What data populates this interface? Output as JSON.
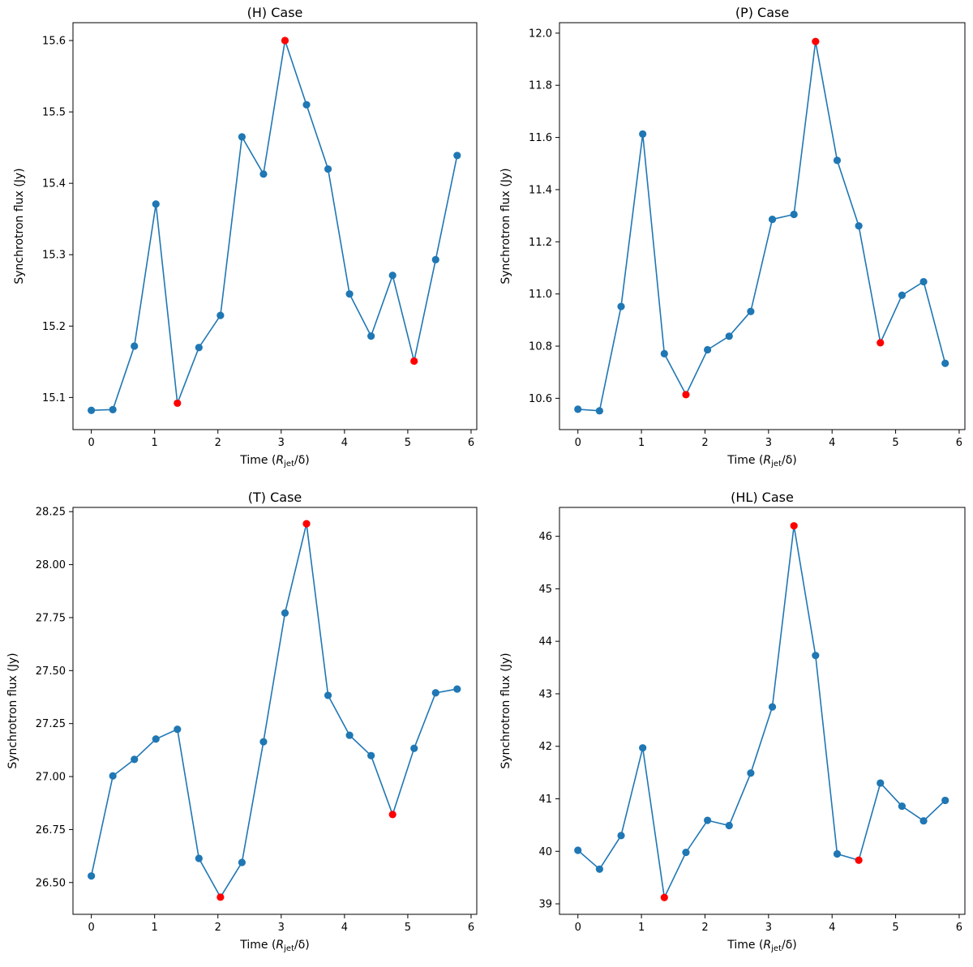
{
  "chart_data": [
    {
      "type": "line",
      "title": "(H) Case",
      "xlabel_main": "Time (",
      "xlabel_var": "R",
      "xlabel_sub": "jet",
      "xlabel_tail": "/δ)",
      "ylabel": "Synchrotron flux (Jy)",
      "xlim": [
        -0.29,
        6.09
      ],
      "ylim": [
        15.055,
        15.625
      ],
      "xticks": [
        0,
        1,
        2,
        3,
        4,
        5,
        6
      ],
      "yticks": [
        15.1,
        15.2,
        15.3,
        15.4,
        15.5,
        15.6
      ],
      "ytick_labels": [
        "15.1",
        "15.2",
        "15.3",
        "15.4",
        "15.5",
        "15.6"
      ],
      "x": [
        0,
        0.34,
        0.68,
        1.02,
        1.36,
        1.7,
        2.04,
        2.38,
        2.72,
        3.06,
        3.4,
        3.74,
        4.08,
        4.42,
        4.76,
        5.1,
        5.44,
        5.78
      ],
      "y": [
        15.082,
        15.083,
        15.172,
        15.371,
        15.092,
        15.17,
        15.215,
        15.465,
        15.413,
        15.6,
        15.51,
        15.42,
        15.245,
        15.186,
        15.271,
        15.151,
        15.293,
        15.439
      ],
      "highlight_indices": [
        4,
        9,
        15
      ],
      "line_color": "#1f77b4",
      "highlight_color": "#ff0000"
    },
    {
      "type": "line",
      "title": "(P) Case",
      "xlabel_main": "Time (",
      "xlabel_var": "R",
      "xlabel_sub": "jet",
      "xlabel_tail": "/δ)",
      "ylabel": "Synchrotron flux (Jy)",
      "xlim": [
        -0.29,
        6.09
      ],
      "ylim": [
        10.48,
        12.04
      ],
      "xticks": [
        0,
        1,
        2,
        3,
        4,
        5,
        6
      ],
      "yticks": [
        10.6,
        10.8,
        11.0,
        11.2,
        11.4,
        11.6,
        11.8,
        12.0
      ],
      "ytick_labels": [
        "10.6",
        "10.8",
        "11.0",
        "11.2",
        "11.4",
        "11.6",
        "11.8",
        "12.0"
      ],
      "x": [
        0,
        0.34,
        0.68,
        1.02,
        1.36,
        1.7,
        2.04,
        2.38,
        2.72,
        3.06,
        3.4,
        3.74,
        4.08,
        4.42,
        4.76,
        5.1,
        5.44,
        5.78
      ],
      "y": [
        10.558,
        10.552,
        10.952,
        11.613,
        10.771,
        10.614,
        10.786,
        10.838,
        10.933,
        11.286,
        11.305,
        11.968,
        11.512,
        11.261,
        10.813,
        10.995,
        11.047,
        10.734
      ],
      "highlight_indices": [
        5,
        11,
        14
      ],
      "line_color": "#1f77b4",
      "highlight_color": "#ff0000"
    },
    {
      "type": "line",
      "title": "(T) Case",
      "xlabel_main": "Time (",
      "xlabel_var": "R",
      "xlabel_sub": "jet",
      "xlabel_tail": "/δ)",
      "ylabel": "Synchrotron flux (Jy)",
      "xlim": [
        -0.29,
        6.09
      ],
      "ylim": [
        26.35,
        28.27
      ],
      "xticks": [
        0,
        1,
        2,
        3,
        4,
        5,
        6
      ],
      "yticks": [
        26.5,
        26.75,
        27.0,
        27.25,
        27.5,
        27.75,
        28.0,
        28.25
      ],
      "ytick_labels": [
        "26.50",
        "26.75",
        "27.00",
        "27.25",
        "27.50",
        "27.75",
        "28.00",
        "28.25"
      ],
      "x": [
        0,
        0.34,
        0.68,
        1.02,
        1.36,
        1.7,
        2.04,
        2.38,
        2.72,
        3.06,
        3.4,
        3.74,
        4.08,
        4.42,
        4.76,
        5.1,
        5.44,
        5.78
      ],
      "y": [
        26.531,
        27.003,
        27.081,
        27.177,
        27.223,
        26.614,
        26.431,
        26.595,
        27.164,
        27.772,
        28.193,
        27.383,
        27.195,
        27.099,
        26.821,
        27.133,
        27.395,
        27.413
      ],
      "highlight_indices": [
        6,
        10,
        14
      ],
      "line_color": "#1f77b4",
      "highlight_color": "#ff0000"
    },
    {
      "type": "line",
      "title": "(HL) Case",
      "xlabel_main": "Time (",
      "xlabel_var": "R",
      "xlabel_sub": "jet",
      "xlabel_tail": "/δ)",
      "ylabel": "Synchrotron flux (Jy)",
      "xlim": [
        -0.29,
        6.09
      ],
      "ylim": [
        38.8,
        46.55
      ],
      "xticks": [
        0,
        1,
        2,
        3,
        4,
        5,
        6
      ],
      "yticks": [
        39,
        40,
        41,
        42,
        43,
        44,
        45,
        46
      ],
      "ytick_labels": [
        "39",
        "40",
        "41",
        "42",
        "43",
        "44",
        "45",
        "46"
      ],
      "x": [
        0,
        0.34,
        0.68,
        1.02,
        1.36,
        1.7,
        2.04,
        2.38,
        2.72,
        3.06,
        3.4,
        3.74,
        4.08,
        4.42,
        4.76,
        5.1,
        5.44,
        5.78
      ],
      "y": [
        40.02,
        39.66,
        40.3,
        41.97,
        39.12,
        39.98,
        40.59,
        40.49,
        41.49,
        42.75,
        46.2,
        43.73,
        39.95,
        39.83,
        41.3,
        40.86,
        40.58,
        40.97
      ],
      "highlight_indices": [
        4,
        10,
        13
      ],
      "line_color": "#1f77b4",
      "highlight_color": "#ff0000"
    }
  ]
}
